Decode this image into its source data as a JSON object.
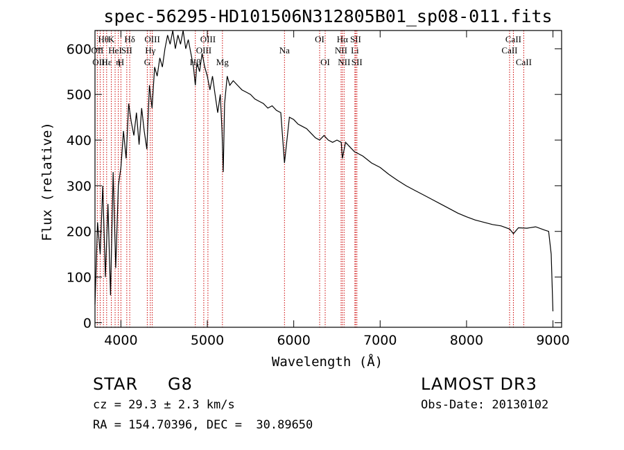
{
  "chart_data": {
    "type": "line",
    "title": "spec-56295-HD101506N312805B01_sp08-011.fits",
    "xlabel": "Wavelength (Å)",
    "ylabel": "Flux (relative)",
    "xlim": [
      3700,
      9100
    ],
    "ylim": [
      -10,
      640
    ],
    "xticks": [
      4000,
      5000,
      6000,
      7000,
      8000,
      9000
    ],
    "yticks": [
      0,
      100,
      200,
      300,
      400,
      500,
      600
    ],
    "series": [
      {
        "name": "spectrum",
        "x": [
          3700,
          3730,
          3760,
          3790,
          3820,
          3850,
          3880,
          3910,
          3940,
          3970,
          4000,
          4030,
          4060,
          4090,
          4120,
          4150,
          4180,
          4210,
          4240,
          4270,
          4300,
          4330,
          4360,
          4390,
          4420,
          4450,
          4480,
          4510,
          4540,
          4570,
          4600,
          4630,
          4660,
          4690,
          4720,
          4750,
          4780,
          4810,
          4840,
          4861,
          4880,
          4910,
          4940,
          4970,
          5000,
          5030,
          5060,
          5090,
          5120,
          5150,
          5170,
          5184,
          5200,
          5230,
          5260,
          5300,
          5350,
          5400,
          5450,
          5500,
          5550,
          5600,
          5650,
          5700,
          5750,
          5800,
          5850,
          5893,
          5950,
          6000,
          6050,
          6100,
          6150,
          6200,
          6250,
          6300,
          6350,
          6400,
          6450,
          6500,
          6550,
          6563,
          6600,
          6650,
          6700,
          6800,
          6900,
          7000,
          7100,
          7200,
          7300,
          7400,
          7500,
          7600,
          7700,
          7800,
          7900,
          8000,
          8100,
          8200,
          8300,
          8400,
          8500,
          8542,
          8600,
          8700,
          8800,
          8900,
          8950,
          8980,
          9000
        ],
        "y": [
          40,
          220,
          150,
          300,
          100,
          260,
          60,
          330,
          120,
          300,
          340,
          420,
          360,
          480,
          440,
          410,
          460,
          390,
          470,
          420,
          380,
          520,
          470,
          560,
          540,
          580,
          560,
          600,
          630,
          610,
          640,
          600,
          630,
          610,
          640,
          600,
          620,
          590,
          560,
          520,
          570,
          550,
          590,
          560,
          540,
          510,
          540,
          500,
          460,
          500,
          420,
          330,
          480,
          540,
          520,
          530,
          520,
          510,
          505,
          500,
          490,
          485,
          480,
          470,
          475,
          465,
          460,
          350,
          450,
          445,
          435,
          430,
          425,
          415,
          405,
          400,
          410,
          400,
          395,
          400,
          395,
          360,
          395,
          385,
          375,
          365,
          350,
          340,
          325,
          312,
          300,
          290,
          280,
          270,
          260,
          250,
          240,
          232,
          225,
          220,
          215,
          212,
          205,
          195,
          208,
          207,
          210,
          203,
          200,
          150,
          25
        ]
      }
    ],
    "line_markers": [
      {
        "name": "CaII",
        "label": "Hθ",
        "wavelength": 3798,
        "row": 1
      },
      {
        "name": "OII",
        "label": "OII",
        "wavelength": 3727,
        "row": 2
      },
      {
        "name": "OIII",
        "label": "OIII",
        "wavelength": 3760,
        "row": 3
      },
      {
        "name": "Heps",
        "label": "Hε",
        "wavelength": 3835,
        "row": 3
      },
      {
        "name": "Hzeta",
        "label": "K",
        "wavelength": 3889,
        "row": 1
      },
      {
        "name": "HeI",
        "label": "HeI",
        "wavelength": 3933,
        "row": 2
      },
      {
        "name": "Heta",
        "label": "η",
        "wavelength": 3970,
        "row": 3
      },
      {
        "name": "SII-4068",
        "label": "SII",
        "wavelength": 4068,
        "row": 2
      },
      {
        "name": "H",
        "label": "H",
        "wavelength": 4000,
        "row": 3
      },
      {
        "name": "Hdelta",
        "label": "Hδ",
        "wavelength": 4102,
        "row": 1
      },
      {
        "name": "OIII-4363",
        "label": "OIII",
        "wavelength": 4363,
        "row": 1
      },
      {
        "name": "Hgamma",
        "label": "Hγ",
        "wavelength": 4340,
        "row": 2
      },
      {
        "name": "G",
        "label": "G",
        "wavelength": 4305,
        "row": 3
      },
      {
        "name": "Hbeta",
        "label": "Hβ",
        "wavelength": 4861,
        "row": 3
      },
      {
        "name": "OIII-4959",
        "label": "OIII",
        "wavelength": 4959,
        "row": 2
      },
      {
        "name": "OIII-5007",
        "label": "OIII",
        "wavelength": 5007,
        "row": 1
      },
      {
        "name": "Mg",
        "label": "Mg",
        "wavelength": 5175,
        "row": 3
      },
      {
        "name": "Na",
        "label": "Na",
        "wavelength": 5893,
        "row": 2
      },
      {
        "name": "OI-6300",
        "label": "OI",
        "wavelength": 6300,
        "row": 1
      },
      {
        "name": "OI-6364",
        "label": "OI",
        "wavelength": 6364,
        "row": 3
      },
      {
        "name": "NII-6548",
        "label": "NII",
        "wavelength": 6548,
        "row": 2
      },
      {
        "name": "Halpha",
        "label": "Hα",
        "wavelength": 6563,
        "row": 1
      },
      {
        "name": "NII-6583",
        "label": "NII",
        "wavelength": 6583,
        "row": 3
      },
      {
        "name": "SII-6716",
        "label": "SII",
        "wavelength": 6716,
        "row": 1
      },
      {
        "name": "Li",
        "label": "Li",
        "wavelength": 6708,
        "row": 2
      },
      {
        "name": "SII-6731",
        "label": "SII",
        "wavelength": 6731,
        "row": 3
      },
      {
        "name": "CaII-8498",
        "label": "CaII",
        "wavelength": 8498,
        "row": 2
      },
      {
        "name": "CaII-8542",
        "label": "CaII",
        "wavelength": 8542,
        "row": 1
      },
      {
        "name": "CaII-8662",
        "label": "CaII",
        "wavelength": 8662,
        "row": 3
      }
    ]
  },
  "info": {
    "class": "STAR",
    "subclass": "G8",
    "survey": "LAMOST DR3",
    "cz": "cz = 29.3 ± 2.3 km/s",
    "obs_date": "Obs-Date: 20130102",
    "coords": "RA = 154.70396, DEC =  30.89650"
  },
  "colors": {
    "spectrum": "#000000",
    "marker": "#cc0000",
    "axes": "#000000"
  }
}
